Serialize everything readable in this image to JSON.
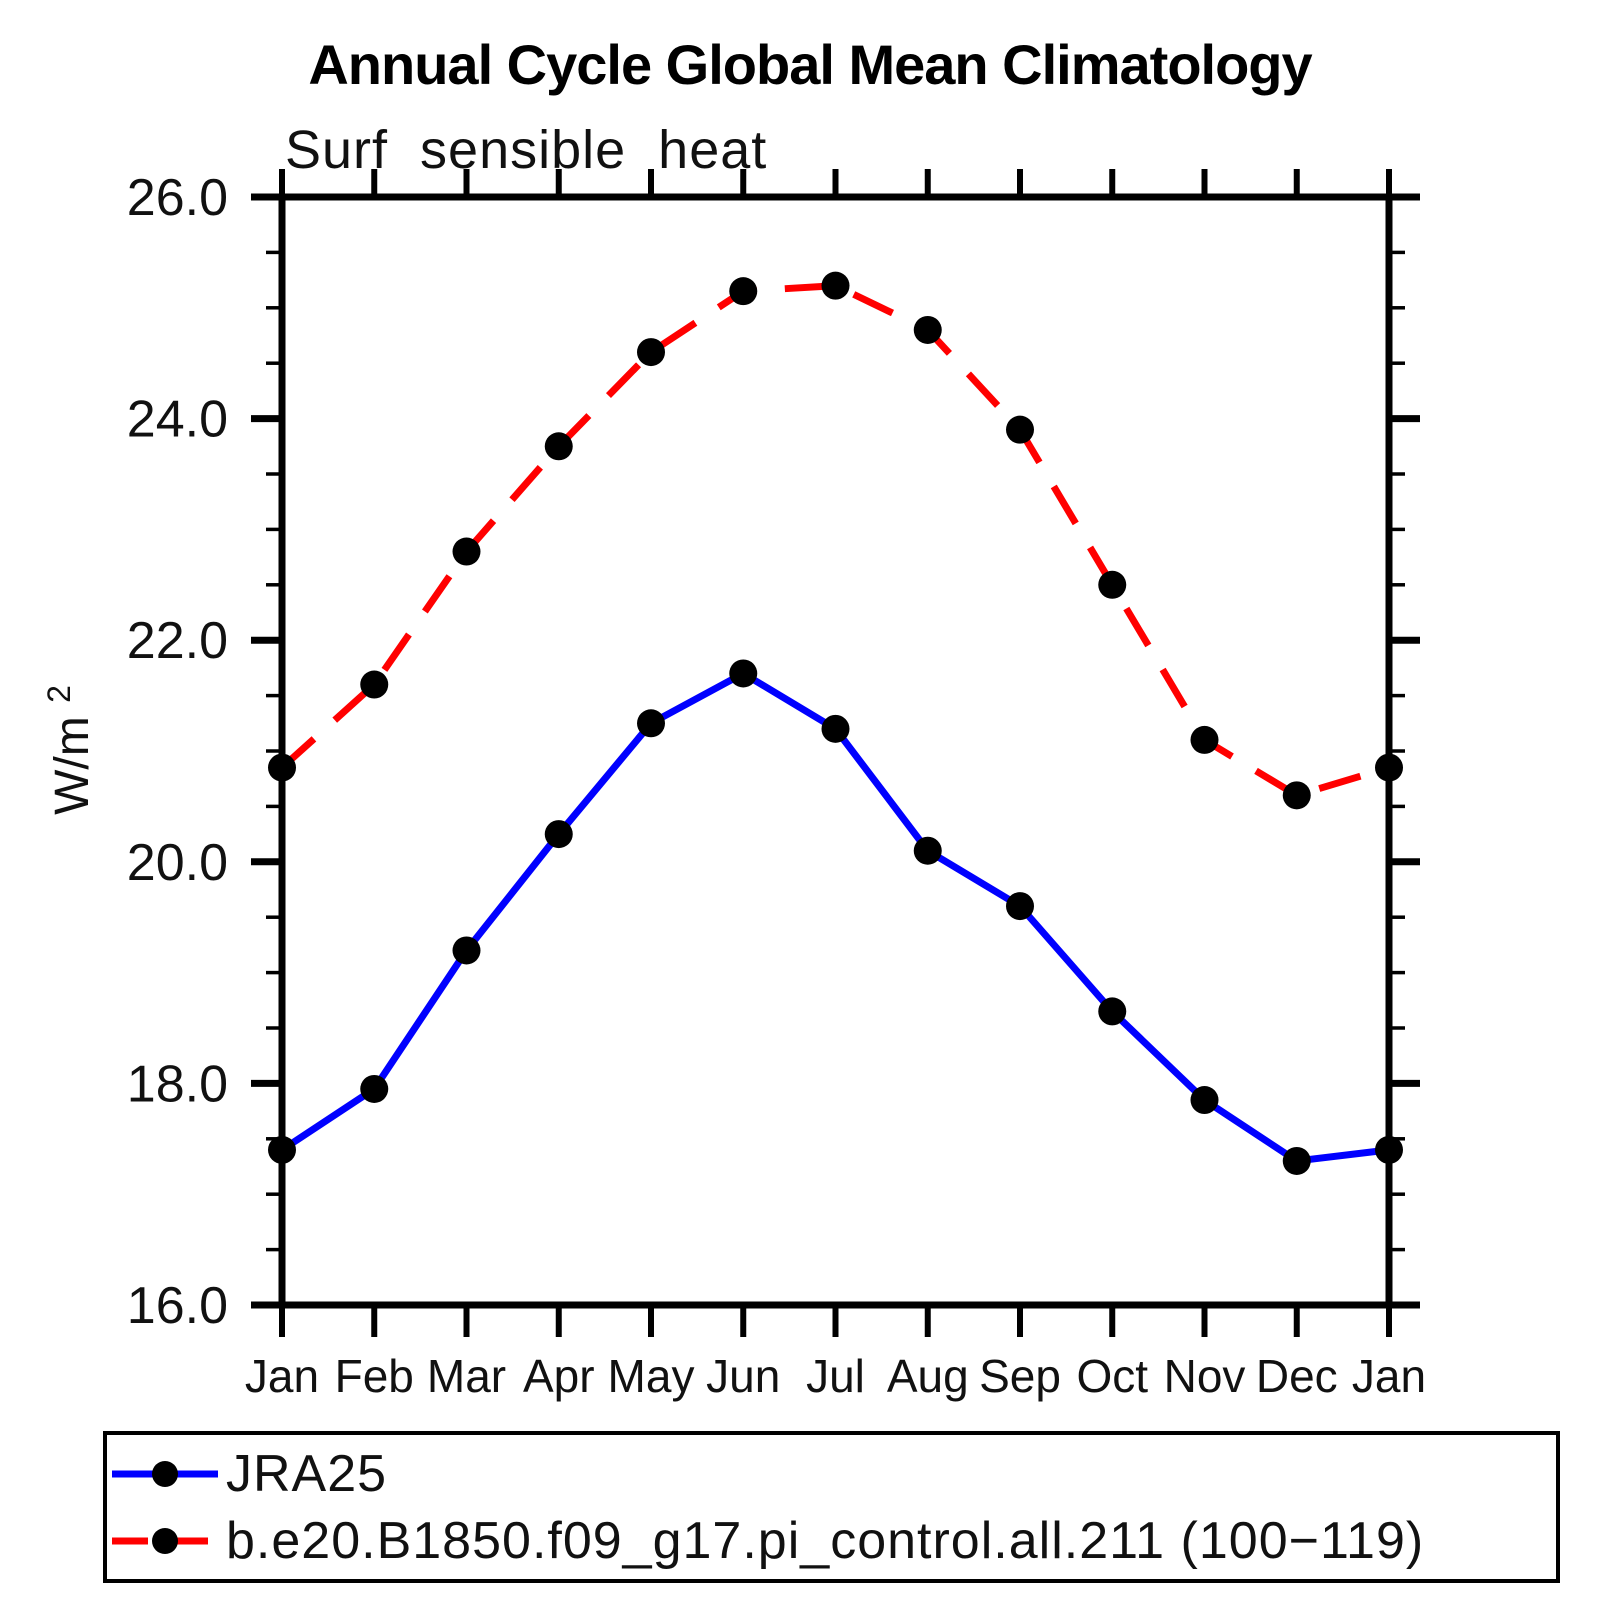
{
  "chart_data": {
    "type": "line",
    "title": "Annual Cycle Global Mean Climatology",
    "subtitle": "Surf sensible heat",
    "ylabel_base": "W/m",
    "ylabel_exp": "2",
    "categories": [
      "Jan",
      "Feb",
      "Mar",
      "Apr",
      "May",
      "Jun",
      "Jul",
      "Aug",
      "Sep",
      "Oct",
      "Nov",
      "Dec",
      "Jan"
    ],
    "ylim": [
      16.0,
      26.0
    ],
    "yticks": [
      16.0,
      18.0,
      20.0,
      22.0,
      24.0,
      26.0
    ],
    "ytick_labels": [
      "16.0",
      "18.0",
      "20.0",
      "22.0",
      "24.0",
      "26.0"
    ],
    "ytick_minor_step": 0.5,
    "grid": false,
    "legend_position": "bottom-left-box",
    "marker": "filled-circle",
    "marker_color": "#000000",
    "axis_color": "#000000",
    "series": [
      {
        "name": "JRA25",
        "color": "#0000ff",
        "style": "solid",
        "values": [
          17.4,
          17.95,
          19.2,
          20.25,
          21.25,
          21.7,
          21.2,
          20.1,
          19.6,
          18.65,
          17.85,
          17.3,
          17.4
        ]
      },
      {
        "name": "b.e20.B1850.f09_g17.pi_control.all.211 (100−119)",
        "color": "#ff0000",
        "style": "dashed",
        "values": [
          20.85,
          21.6,
          22.8,
          23.75,
          24.6,
          25.15,
          25.2,
          24.8,
          23.9,
          22.5,
          21.1,
          20.6,
          20.85
        ]
      }
    ]
  }
}
